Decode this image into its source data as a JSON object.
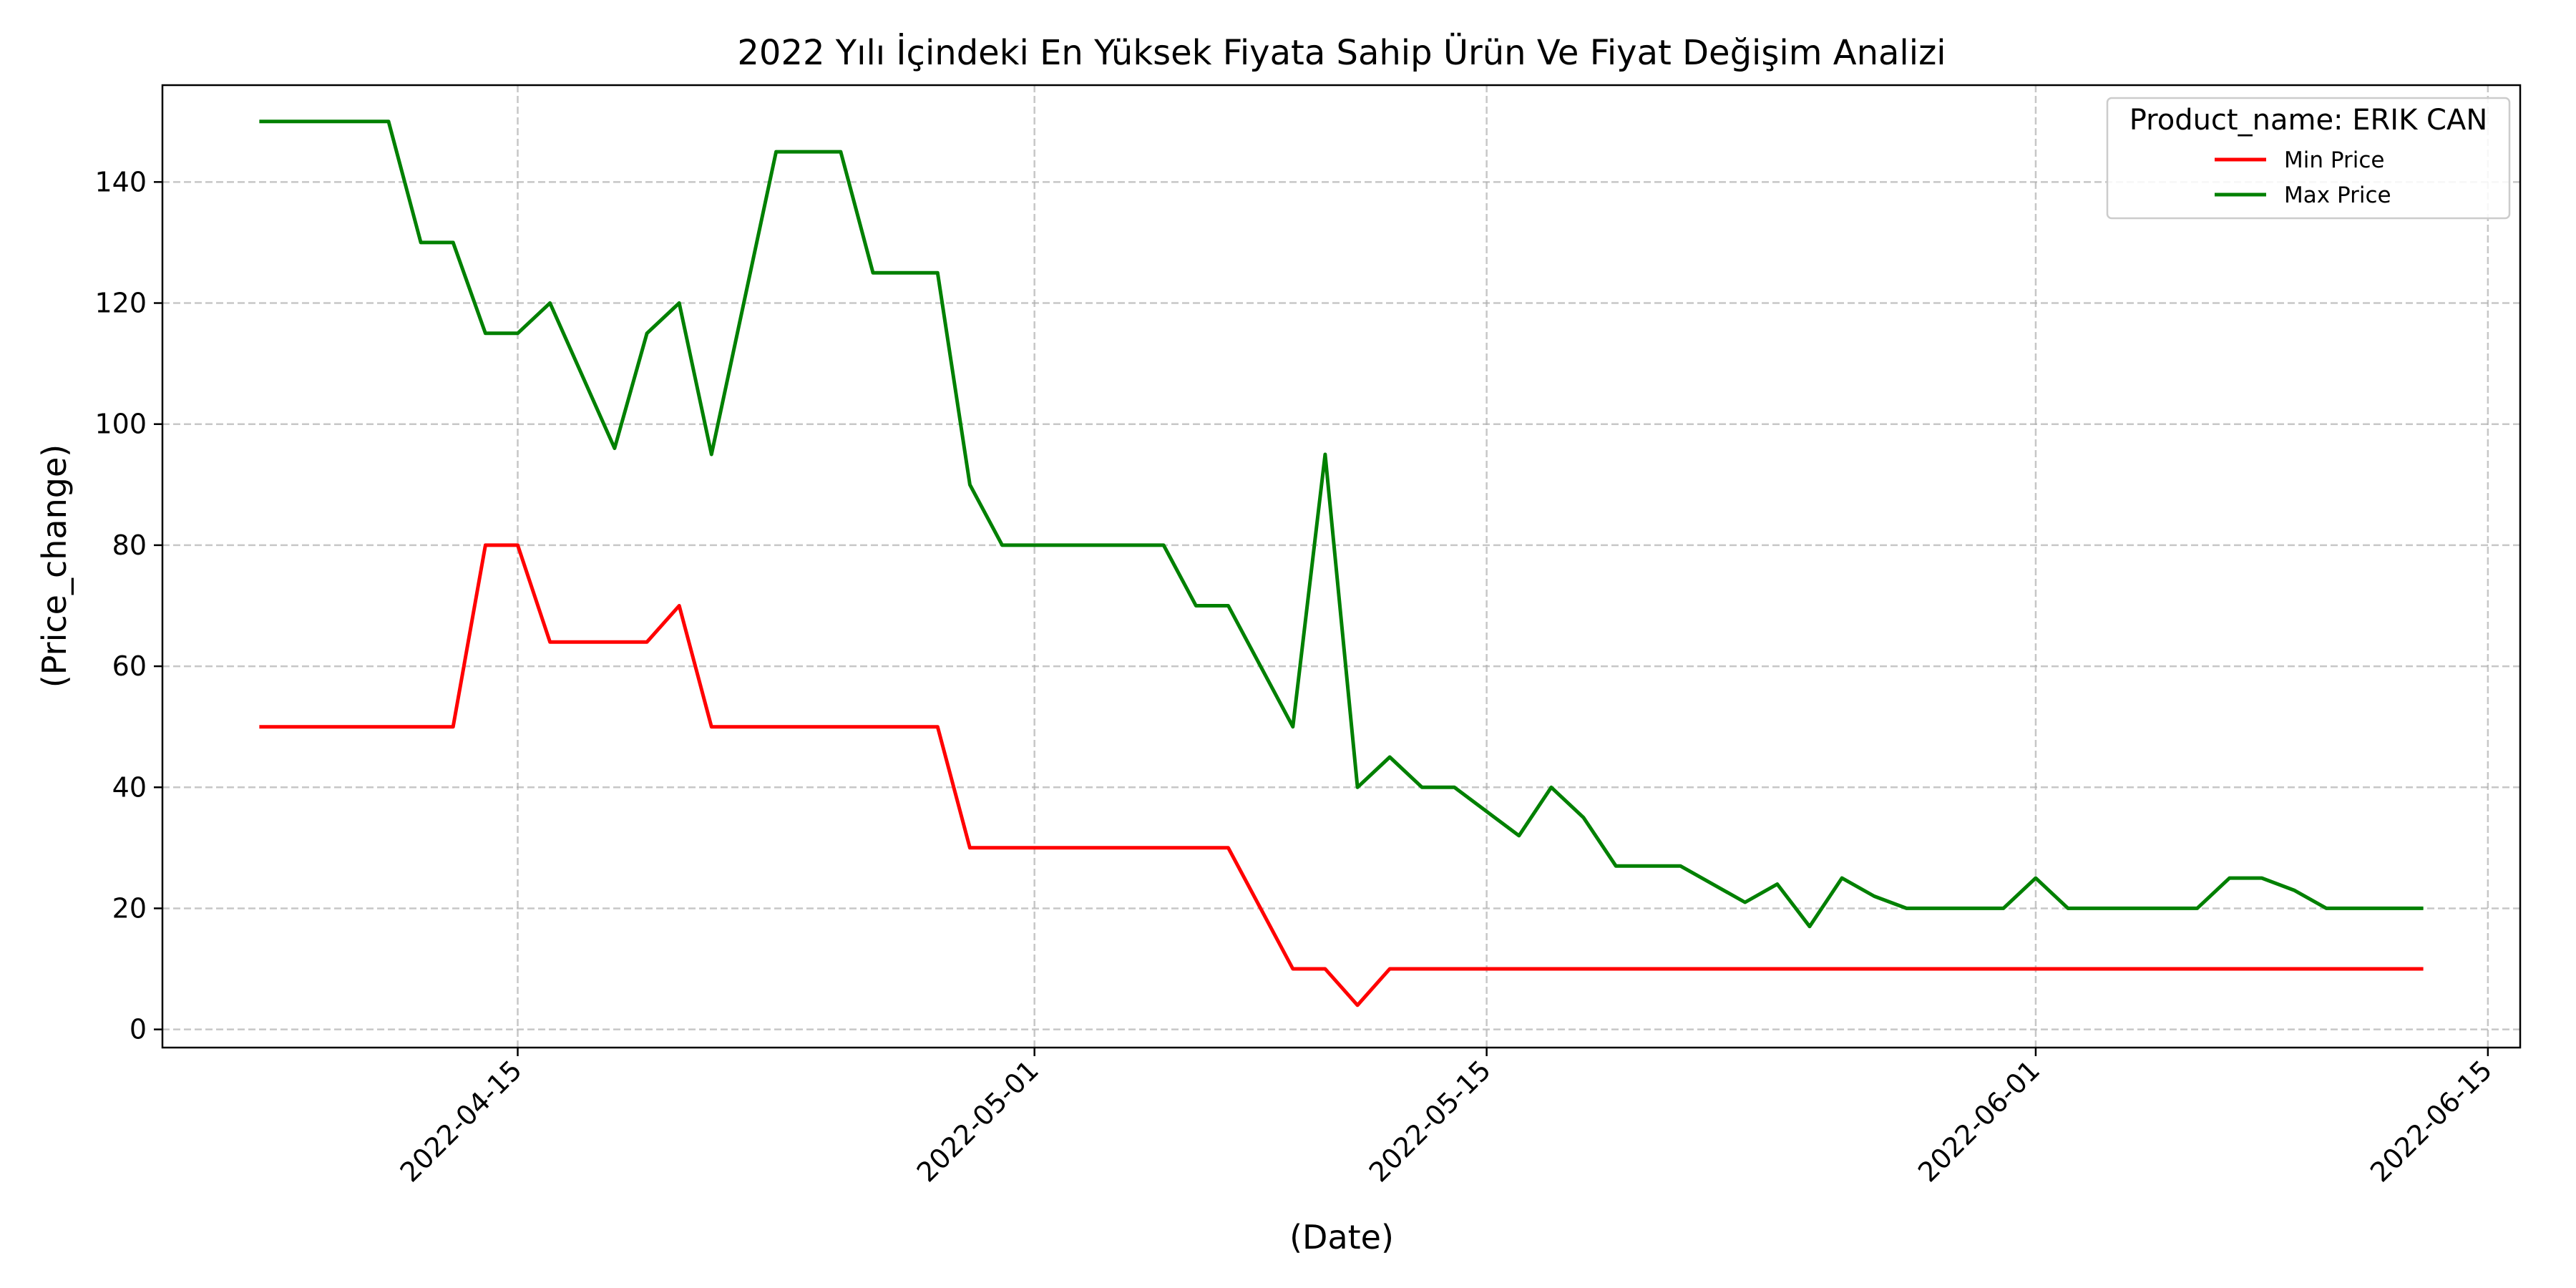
{
  "chart_data": {
    "type": "line",
    "title": "2022 Yılı İçindeki En Yüksek Fiyata Sahip Ürün Ve Fiyat Değişim Analizi",
    "xlabel": "(Date)",
    "ylabel": "(Price_change)",
    "xlim": [
      "2022-04-04",
      "2022-06-16"
    ],
    "ylim": [
      -3,
      156
    ],
    "x_ticks": [
      "2022-04-15",
      "2022-05-01",
      "2022-05-15",
      "2022-06-01",
      "2022-06-15"
    ],
    "y_ticks": [
      0,
      20,
      40,
      60,
      80,
      100,
      120,
      140
    ],
    "grid": true,
    "legend": {
      "title": "Product_name: ERIK  CAN",
      "position": "top-right"
    },
    "series": [
      {
        "name": "Min Price",
        "color": "#ff0000",
        "points": [
          [
            "2022-04-07",
            50
          ],
          [
            "2022-04-13",
            50
          ],
          [
            "2022-04-14",
            80
          ],
          [
            "2022-04-15",
            80
          ],
          [
            "2022-04-16",
            64
          ],
          [
            "2022-04-19",
            64
          ],
          [
            "2022-04-20",
            70
          ],
          [
            "2022-04-21",
            50
          ],
          [
            "2022-04-28",
            50
          ],
          [
            "2022-04-29",
            30
          ],
          [
            "2022-05-07",
            30
          ],
          [
            "2022-05-09",
            10
          ],
          [
            "2022-05-10",
            10
          ],
          [
            "2022-05-11",
            4
          ],
          [
            "2022-05-12",
            10
          ],
          [
            "2022-06-13",
            10
          ]
        ]
      },
      {
        "name": "Max Price",
        "color": "#008000",
        "points": [
          [
            "2022-04-07",
            150
          ],
          [
            "2022-04-11",
            150
          ],
          [
            "2022-04-12",
            130
          ],
          [
            "2022-04-13",
            130
          ],
          [
            "2022-04-14",
            115
          ],
          [
            "2022-04-15",
            115
          ],
          [
            "2022-04-16",
            120
          ],
          [
            "2022-04-18",
            96
          ],
          [
            "2022-04-19",
            115
          ],
          [
            "2022-04-20",
            120
          ],
          [
            "2022-04-21",
            95
          ],
          [
            "2022-04-23",
            145
          ],
          [
            "2022-04-25",
            145
          ],
          [
            "2022-04-26",
            125
          ],
          [
            "2022-04-28",
            125
          ],
          [
            "2022-04-29",
            90
          ],
          [
            "2022-04-30",
            80
          ],
          [
            "2022-05-05",
            80
          ],
          [
            "2022-05-06",
            70
          ],
          [
            "2022-05-07",
            70
          ],
          [
            "2022-05-09",
            50
          ],
          [
            "2022-05-10",
            95
          ],
          [
            "2022-05-11",
            40
          ],
          [
            "2022-05-12",
            45
          ],
          [
            "2022-05-13",
            40
          ],
          [
            "2022-05-14",
            40
          ],
          [
            "2022-05-16",
            32
          ],
          [
            "2022-05-17",
            40
          ],
          [
            "2022-05-18",
            35
          ],
          [
            "2022-05-19",
            27
          ],
          [
            "2022-05-21",
            27
          ],
          [
            "2022-05-23",
            21
          ],
          [
            "2022-05-24",
            24
          ],
          [
            "2022-05-25",
            17
          ],
          [
            "2022-05-26",
            25
          ],
          [
            "2022-05-27",
            22
          ],
          [
            "2022-05-28",
            20
          ],
          [
            "2022-05-31",
            20
          ],
          [
            "2022-06-01",
            25
          ],
          [
            "2022-06-02",
            20
          ],
          [
            "2022-06-06",
            20
          ],
          [
            "2022-06-07",
            25
          ],
          [
            "2022-06-08",
            25
          ],
          [
            "2022-06-09",
            23
          ],
          [
            "2022-06-10",
            20
          ],
          [
            "2022-06-13",
            20
          ]
        ]
      }
    ]
  }
}
